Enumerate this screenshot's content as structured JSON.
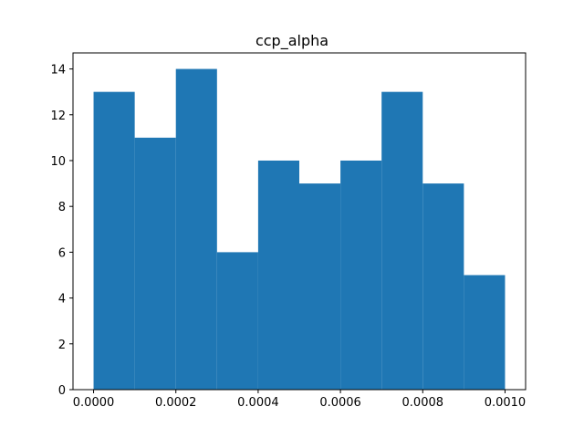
{
  "chart_data": {
    "type": "histogram",
    "title": "ccp_alpha",
    "xlabel": "",
    "ylabel": "",
    "bin_edges": [
      0.0,
      0.0001,
      0.0002,
      0.0003,
      0.0004,
      0.0005,
      0.0006,
      0.0007,
      0.0008,
      0.0009,
      0.001
    ],
    "counts": [
      13,
      11,
      14,
      6,
      10,
      9,
      10,
      13,
      9,
      5
    ],
    "xlim": [
      -5e-05,
      0.00105
    ],
    "ylim": [
      0,
      14.7
    ],
    "x_ticks": [
      0.0,
      0.0002,
      0.0004,
      0.0006,
      0.0008,
      0.001
    ],
    "x_tick_labels": [
      "0.0000",
      "0.0002",
      "0.0004",
      "0.0006",
      "0.0008",
      "0.0010"
    ],
    "y_ticks": [
      0,
      2,
      4,
      6,
      8,
      10,
      12,
      14
    ],
    "y_tick_labels": [
      "0",
      "2",
      "4",
      "6",
      "8",
      "10",
      "12",
      "14"
    ],
    "bar_color": "#1f77b4",
    "grid": false
  }
}
